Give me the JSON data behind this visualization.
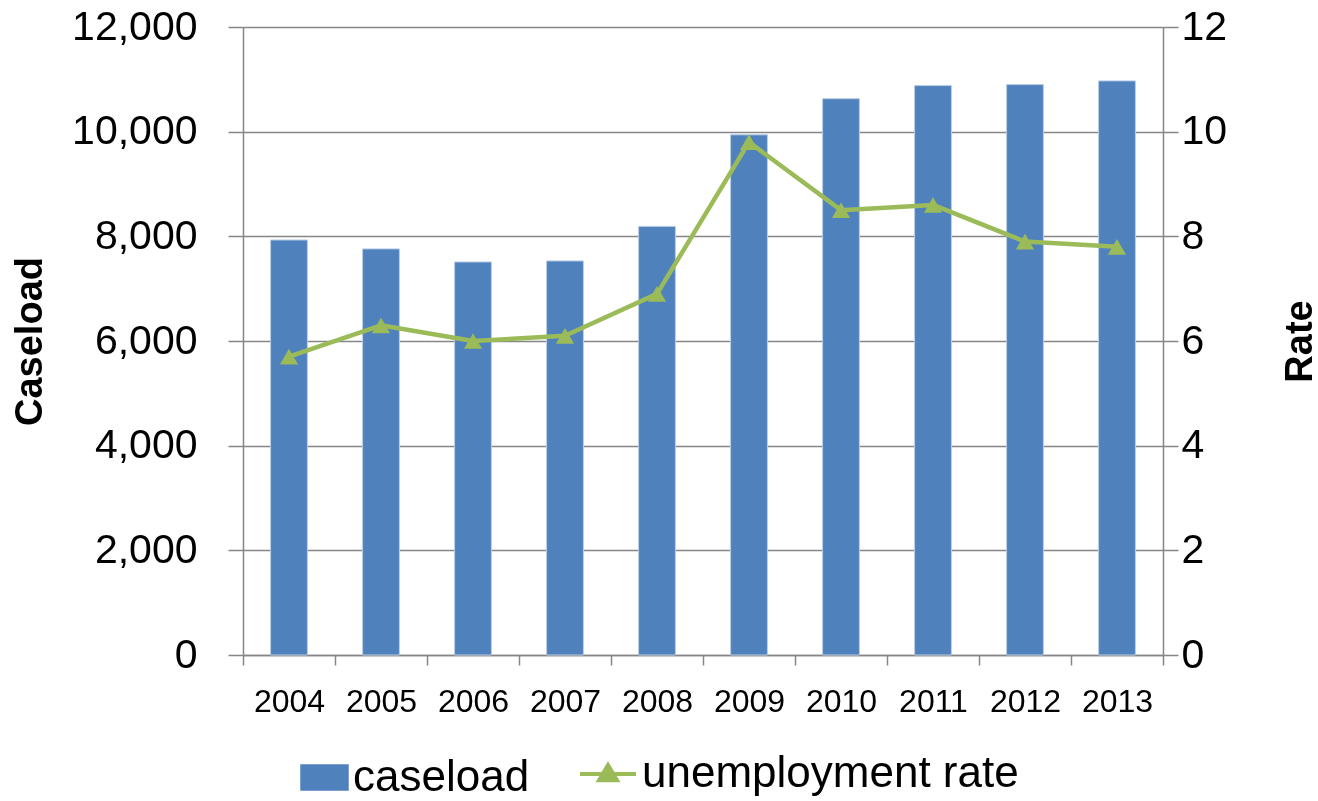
{
  "chart_data": {
    "type": "bar",
    "categories": [
      "2004",
      "2005",
      "2006",
      "2007",
      "2008",
      "2009",
      "2010",
      "2011",
      "2012",
      "2013"
    ],
    "ylabel": "Caseload",
    "y2label": "Rate",
    "series": [
      {
        "name": "caseload",
        "type": "bar",
        "color": "#4f81bd",
        "values": [
          7930,
          7760,
          7510,
          7530,
          8190,
          9940,
          10630,
          10880,
          10900,
          10970
        ]
      },
      {
        "name": "unemployment rate",
        "type": "line",
        "axis": "y2",
        "color": "#9bbb59",
        "marker": "triangle",
        "line_style": "solid",
        "values": [
          5.7,
          6.3,
          6.0,
          6.1,
          6.9,
          9.8,
          8.5,
          8.6,
          7.9,
          7.8
        ]
      }
    ],
    "ylim": [
      0,
      12000
    ],
    "yticks": [
      0,
      {
        "value": 2000,
        "label": "2,000"
      },
      {
        "value": 4000,
        "label": "4,000"
      },
      {
        "value": 6000,
        "label": "6,000"
      },
      {
        "value": 8000,
        "label": "8,000"
      },
      {
        "value": 10000,
        "label": "10,000"
      },
      {
        "value": 12000,
        "label": "12,000"
      }
    ],
    "y2lim": [
      0,
      12
    ],
    "y2ticks": [
      0,
      2,
      4,
      6,
      8,
      10,
      12
    ],
    "grid": "y",
    "legend": "bottom"
  }
}
